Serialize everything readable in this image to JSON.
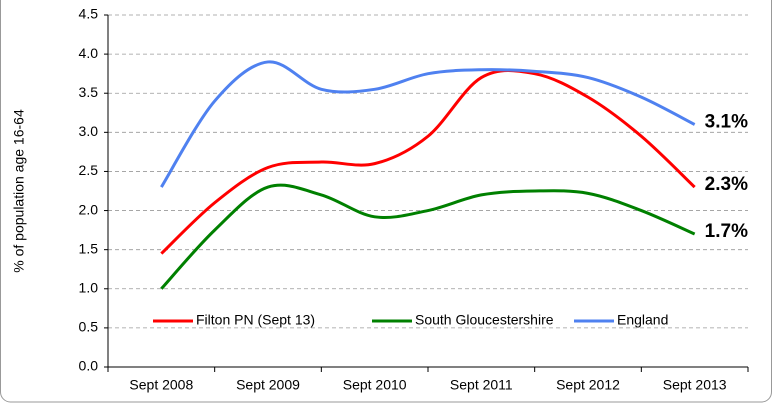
{
  "chart_data": {
    "type": "line",
    "y_label": "% of population age 16-64",
    "categories": [
      "Sept 2008",
      null,
      "Sept 2009",
      null,
      "Sept 2010",
      null,
      "Sept 2011",
      null,
      "Sept 2012",
      null,
      "Sept 2013"
    ],
    "series": [
      {
        "name": "Filton PN (Sept 13)",
        "color": "#ff0000",
        "values": [
          1.45,
          2.1,
          2.55,
          2.62,
          2.6,
          2.95,
          3.7,
          3.75,
          3.45,
          2.95,
          2.3
        ],
        "value_labels": [
          null,
          null,
          null,
          null,
          null,
          null,
          null,
          null,
          null,
          null,
          "2.3%"
        ]
      },
      {
        "name": "South Gloucestershire",
        "color": "#008000",
        "values": [
          1.0,
          1.75,
          2.3,
          2.2,
          1.92,
          2.0,
          2.2,
          2.25,
          2.22,
          2.0,
          1.7
        ],
        "value_labels": [
          null,
          null,
          null,
          null,
          null,
          null,
          null,
          null,
          null,
          null,
          "1.7%"
        ]
      },
      {
        "name": "England",
        "color": "#4f81f0",
        "values": [
          2.3,
          3.4,
          3.9,
          3.55,
          3.55,
          3.75,
          3.8,
          3.78,
          3.7,
          3.45,
          3.1
        ],
        "value_labels": [
          null,
          null,
          null,
          null,
          null,
          null,
          null,
          null,
          null,
          null,
          "3.1%"
        ]
      }
    ],
    "ylim": [
      0,
      4.5
    ],
    "yticks": [
      {
        "value": 0,
        "label": "0.0"
      },
      {
        "value": 0.5,
        "label": "0.5"
      },
      {
        "value": 1,
        "label": "1.0"
      },
      {
        "value": 1.5,
        "label": "1.5"
      },
      {
        "value": 2,
        "label": "2.0"
      },
      {
        "value": 2.5,
        "label": "2.5"
      },
      {
        "value": 3,
        "label": "3.0"
      },
      {
        "value": 3.5,
        "label": "3.5"
      },
      {
        "value": 4,
        "label": "4.0"
      },
      {
        "value": 4.5,
        "label": "4.5"
      }
    ],
    "grid": true,
    "legend": "bottom"
  }
}
